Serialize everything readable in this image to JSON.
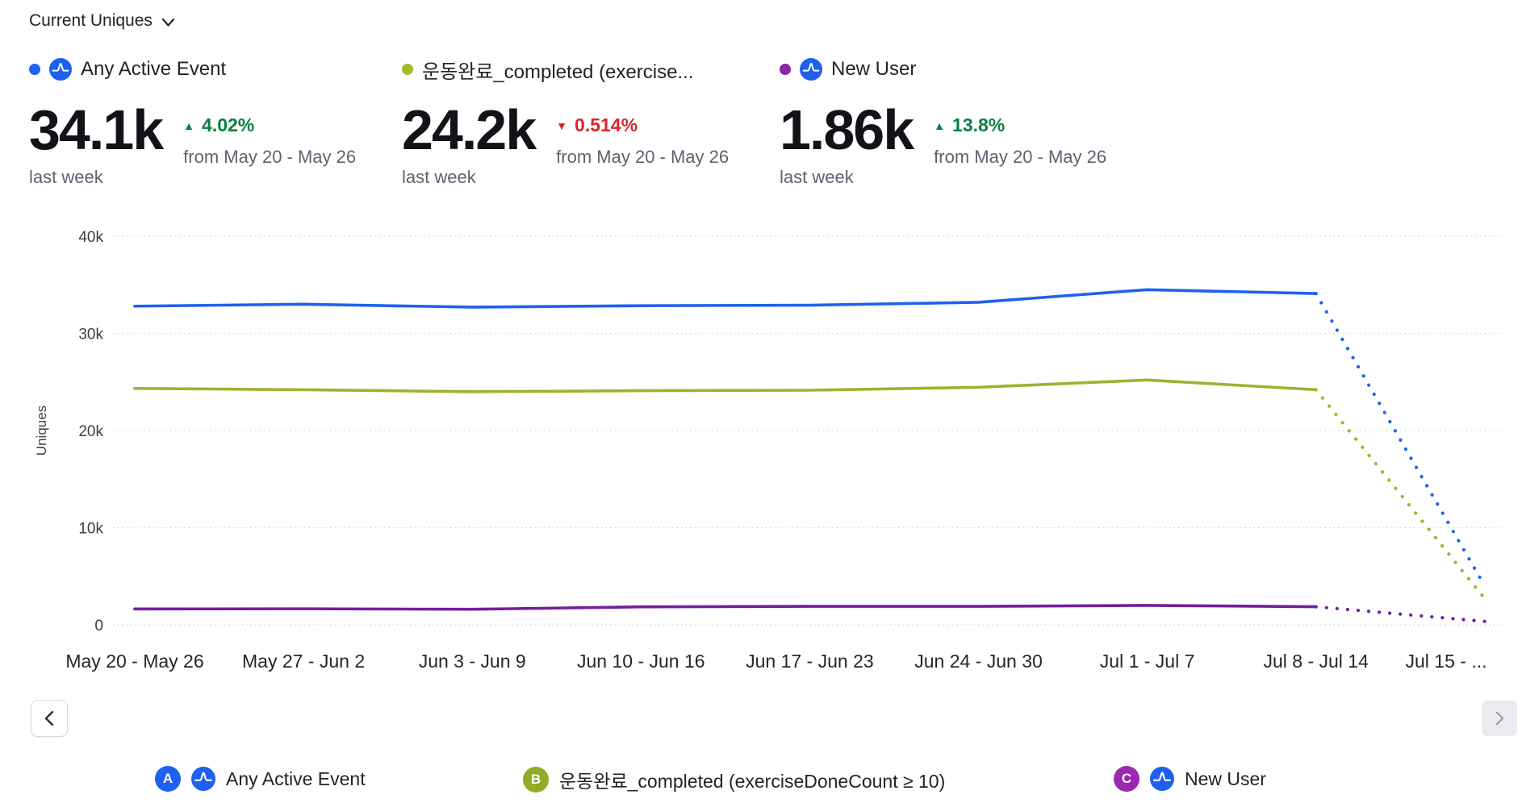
{
  "header": {
    "metric_selector_label": "Current Uniques"
  },
  "summary": [
    {
      "label": "Any Active Event",
      "value": "34.1k",
      "period": "last week",
      "change_icon": "▲",
      "change": "4.02%",
      "direction": "up",
      "compare": "from May 20 - May 26",
      "dot_color": "#1E61F0"
    },
    {
      "label": "운동완료_completed (exercise...",
      "value": "24.2k",
      "period": "last week",
      "change_icon": "▼",
      "change": "0.514%",
      "direction": "down",
      "compare": "from May 20 - May 26",
      "dot_color": "#A6BB23"
    },
    {
      "label": "New User",
      "value": "1.86k",
      "period": "last week",
      "change_icon": "▲",
      "change": "13.8%",
      "direction": "up",
      "compare": "from May 20 - May 26",
      "dot_color": "#8E24AA"
    }
  ],
  "chart_data": {
    "type": "line",
    "title": "Current Uniques",
    "ylabel": "Uniques",
    "xlabel": "",
    "ylim": [
      0,
      40000
    ],
    "yticks": [
      {
        "value": 0,
        "label": "0"
      },
      {
        "value": 10000,
        "label": "10k"
      },
      {
        "value": 20000,
        "label": "20k"
      },
      {
        "value": 30000,
        "label": "30k"
      },
      {
        "value": 40000,
        "label": "40k"
      }
    ],
    "grid": "horizontal-dotted",
    "legend_position": "bottom",
    "x": [
      "May 20 - May 26",
      "May 27 - Jun 2",
      "Jun 3 - Jun 9",
      "Jun 10 - Jun 16",
      "Jun 17 - Jun 23",
      "Jun 24 - Jun 30",
      "Jul 1 - Jul 7",
      "Jul 8 - Jul 14",
      "Jul 15 - ..."
    ],
    "solid_until_index": 7,
    "series": [
      {
        "name": "Any Active Event",
        "color": "#1E61F0",
        "values": [
          32800,
          33000,
          32700,
          32850,
          32900,
          33200,
          34500,
          34100,
          4000
        ]
      },
      {
        "name": "운동완료_completed (exerciseDoneCount ≥ 10)",
        "color": "#A1B12E",
        "values": [
          24330,
          24200,
          24000,
          24100,
          24150,
          24450,
          25200,
          24200,
          2700
        ]
      },
      {
        "name": "New User",
        "color": "#721E9E",
        "values": [
          1630,
          1650,
          1600,
          1850,
          1900,
          1900,
          2000,
          1860,
          350
        ]
      }
    ]
  },
  "pager": {
    "prev_icon": "chevron-left",
    "next_icon": "chevron-right"
  },
  "legend": [
    {
      "badge": "A",
      "badge_color": "#1E61F0",
      "label": "Any Active Event"
    },
    {
      "badge": "B",
      "badge_color": "#93AC25",
      "label": "운동완료_completed (exerciseDoneCount ≥ 10)"
    },
    {
      "badge": "C",
      "badge_color": "#9C27B0",
      "label": "New User"
    }
  ]
}
